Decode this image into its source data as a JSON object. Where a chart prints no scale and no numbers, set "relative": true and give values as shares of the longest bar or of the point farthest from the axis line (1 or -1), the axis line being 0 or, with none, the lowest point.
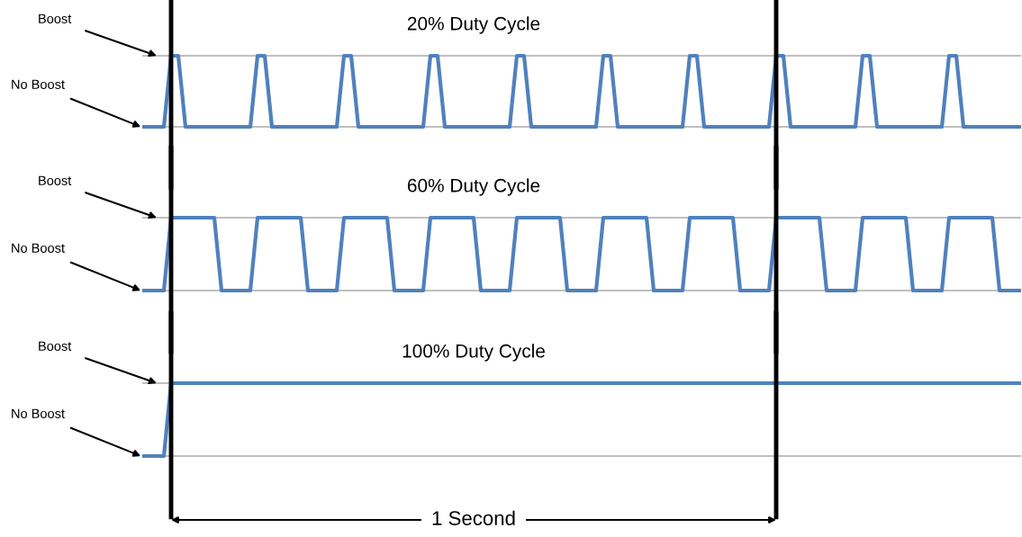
{
  "chart_data": [
    {
      "type": "line",
      "title": "20% Duty Cycle",
      "relative": true,
      "grid": "y",
      "categories": [
        null,
        null,
        null,
        null,
        null,
        null,
        null,
        null,
        null,
        null,
        null,
        null,
        null,
        null,
        null,
        null,
        null,
        null,
        null,
        null,
        null,
        null,
        null,
        null,
        null,
        null,
        null,
        null,
        null,
        null,
        null,
        null,
        null,
        null,
        null,
        null,
        null,
        null,
        null,
        null,
        null,
        null,
        null,
        null,
        null,
        null,
        null,
        null,
        null,
        null,
        null,
        null,
        null,
        null,
        null,
        null,
        null,
        null,
        null,
        null,
        null,
        null,
        null,
        null,
        null,
        null,
        null,
        null,
        null,
        null,
        null,
        null,
        null,
        null,
        null,
        null,
        null,
        null,
        null,
        null,
        null,
        null,
        null,
        null,
        null,
        null,
        null,
        null,
        null,
        null,
        null,
        null,
        null,
        null,
        null,
        null,
        null,
        null,
        null,
        null,
        null,
        null,
        null,
        null,
        null,
        null,
        null,
        null,
        null,
        null,
        null,
        null,
        null,
        null,
        null,
        null,
        null,
        null,
        null,
        null,
        null,
        null,
        null
      ],
      "series": [
        {
          "color": "#4f81bd",
          "values": [
            0,
            0,
            0,
            0,
            1,
            1,
            0,
            0,
            0,
            0,
            0,
            0,
            0,
            0,
            0,
            0,
            1,
            1,
            0,
            0,
            0,
            0,
            0,
            0,
            0,
            0,
            0,
            0,
            1,
            1,
            0,
            0,
            0,
            0,
            0,
            0,
            0,
            0,
            0,
            0,
            1,
            1,
            0,
            0,
            0,
            0,
            0,
            0,
            0,
            0,
            0,
            0,
            1,
            1,
            0,
            0,
            0,
            0,
            0,
            0,
            0,
            0,
            0,
            0,
            1,
            1,
            0,
            0,
            0,
            0,
            0,
            0,
            0,
            0,
            0,
            0,
            1,
            1,
            0,
            0,
            0,
            0,
            0,
            0,
            0,
            0,
            0,
            0,
            1,
            1,
            0,
            0,
            0,
            0,
            0,
            0,
            0,
            0,
            0,
            0,
            1,
            1,
            0,
            0,
            0,
            0,
            0,
            0,
            0,
            0,
            0,
            0,
            1,
            1,
            0,
            0,
            0,
            0,
            0,
            0,
            0,
            0,
            0
          ]
        }
      ],
      "annotations": [
        "Boost",
        "No Boost"
      ]
    },
    {
      "type": "line",
      "title": "60% Duty Cycle",
      "relative": true,
      "grid": "y",
      "categories": [
        null,
        null,
        null,
        null,
        null,
        null,
        null,
        null,
        null,
        null,
        null,
        null,
        null,
        null,
        null,
        null,
        null,
        null,
        null,
        null,
        null,
        null,
        null,
        null,
        null,
        null,
        null,
        null,
        null,
        null,
        null,
        null,
        null,
        null,
        null,
        null,
        null,
        null,
        null,
        null,
        null,
        null,
        null,
        null,
        null,
        null,
        null,
        null,
        null,
        null,
        null,
        null,
        null,
        null,
        null,
        null,
        null,
        null,
        null,
        null,
        null,
        null,
        null,
        null,
        null,
        null,
        null,
        null,
        null,
        null,
        null,
        null,
        null,
        null,
        null,
        null,
        null,
        null,
        null,
        null,
        null,
        null,
        null,
        null,
        null,
        null,
        null,
        null,
        null,
        null,
        null,
        null,
        null,
        null,
        null,
        null,
        null,
        null,
        null,
        null,
        null,
        null,
        null,
        null,
        null,
        null,
        null,
        null,
        null,
        null,
        null,
        null,
        null,
        null,
        null,
        null,
        null,
        null,
        null,
        null,
        null,
        null,
        null
      ],
      "series": [
        {
          "color": "#4f81bd",
          "values": [
            0,
            0,
            0,
            0,
            1,
            1,
            1,
            1,
            1,
            1,
            1,
            0,
            0,
            0,
            0,
            0,
            1,
            1,
            1,
            1,
            1,
            1,
            1,
            0,
            0,
            0,
            0,
            0,
            1,
            1,
            1,
            1,
            1,
            1,
            1,
            0,
            0,
            0,
            0,
            0,
            1,
            1,
            1,
            1,
            1,
            1,
            1,
            0,
            0,
            0,
            0,
            0,
            1,
            1,
            1,
            1,
            1,
            1,
            1,
            0,
            0,
            0,
            0,
            0,
            1,
            1,
            1,
            1,
            1,
            1,
            1,
            0,
            0,
            0,
            0,
            0,
            1,
            1,
            1,
            1,
            1,
            1,
            1,
            0,
            0,
            0,
            0,
            0,
            1,
            1,
            1,
            1,
            1,
            1,
            1,
            0,
            0,
            0,
            0,
            0,
            1,
            1,
            1,
            1,
            1,
            1,
            1,
            0,
            0,
            0,
            0,
            0,
            1,
            1,
            1,
            1,
            1,
            1,
            1,
            0,
            0,
            0,
            0
          ]
        }
      ],
      "annotations": [
        "Boost",
        "No Boost"
      ]
    },
    {
      "type": "line",
      "title": "100% Duty Cycle",
      "relative": true,
      "grid": "y",
      "categories": [
        null,
        null,
        null,
        null,
        null,
        null,
        null,
        null,
        null,
        null,
        null,
        null,
        null,
        null,
        null,
        null,
        null,
        null,
        null,
        null,
        null,
        null,
        null,
        null,
        null,
        null,
        null,
        null,
        null,
        null,
        null,
        null,
        null,
        null,
        null,
        null,
        null,
        null,
        null,
        null,
        null,
        null,
        null,
        null,
        null,
        null,
        null,
        null,
        null,
        null,
        null,
        null,
        null,
        null,
        null,
        null,
        null,
        null,
        null,
        null,
        null,
        null,
        null,
        null,
        null,
        null,
        null,
        null,
        null,
        null,
        null,
        null,
        null,
        null,
        null,
        null,
        null,
        null,
        null,
        null,
        null,
        null,
        null,
        null,
        null,
        null,
        null,
        null,
        null,
        null,
        null,
        null,
        null,
        null,
        null,
        null,
        null,
        null,
        null,
        null,
        null,
        null,
        null,
        null,
        null,
        null,
        null,
        null,
        null,
        null,
        null,
        null,
        null,
        null,
        null,
        null,
        null,
        null,
        null,
        null,
        null,
        null,
        null
      ],
      "series": [
        {
          "color": "#4f81bd",
          "values": [
            0,
            0,
            0,
            0,
            1,
            1,
            1,
            1,
            1,
            1,
            1,
            1,
            1,
            1,
            1,
            1,
            1,
            1,
            1,
            1,
            1,
            1,
            1,
            1,
            1,
            1,
            1,
            1,
            1,
            1,
            1,
            1,
            1,
            1,
            1,
            1,
            1,
            1,
            1,
            1,
            1,
            1,
            1,
            1,
            1,
            1,
            1,
            1,
            1,
            1,
            1,
            1,
            1,
            1,
            1,
            1,
            1,
            1,
            1,
            1,
            1,
            1,
            1,
            1,
            1,
            1,
            1,
            1,
            1,
            1,
            1,
            1,
            1,
            1,
            1,
            1,
            1,
            1,
            1,
            1,
            1,
            1,
            1,
            1,
            1,
            1,
            1,
            1,
            1,
            1,
            1,
            1,
            1,
            1,
            1,
            1,
            1,
            1,
            1,
            1,
            1,
            1,
            1,
            1,
            1,
            1,
            1,
            1,
            1,
            1,
            1,
            1,
            1,
            1,
            1,
            1,
            1,
            1,
            1,
            1,
            1,
            1,
            1
          ]
        }
      ],
      "annotations": [
        "Boost",
        "No Boost",
        "1 Second"
      ]
    }
  ]
}
